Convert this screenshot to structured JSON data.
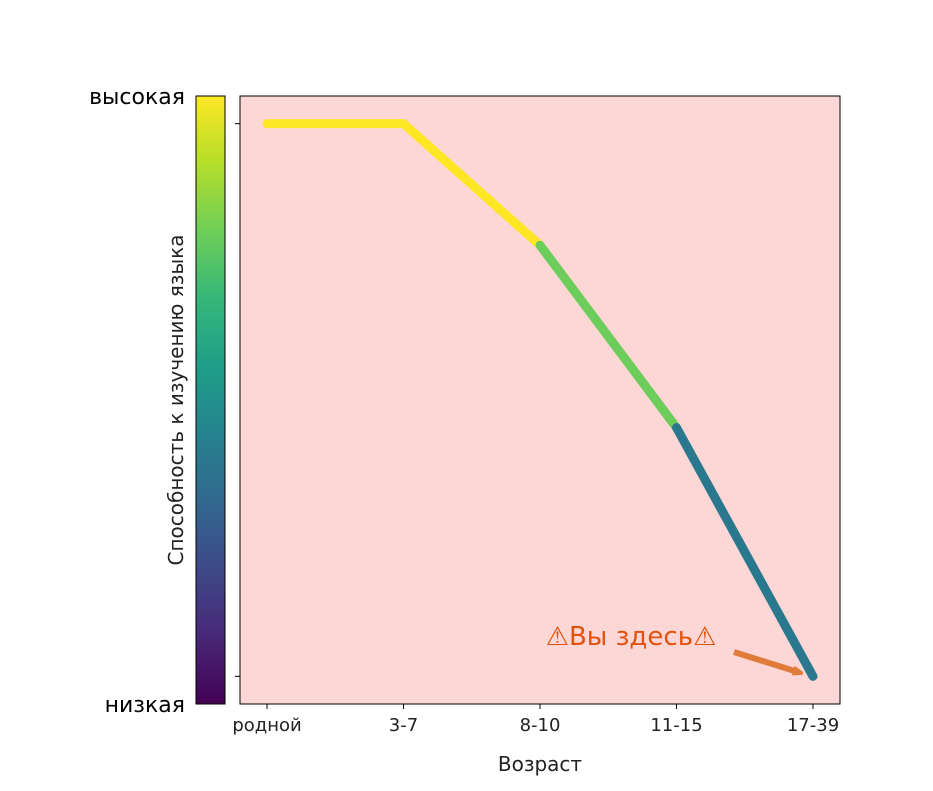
{
  "chart_data": {
    "type": "line",
    "categories": [
      "родной",
      "3-7",
      "8-10",
      "11-15",
      "17-39"
    ],
    "values": [
      1.0,
      1.0,
      0.78,
      0.45,
      0.0
    ],
    "segment_colors": [
      "#fde725",
      "#fde725",
      "#6ccd5a",
      "#2a788e"
    ],
    "ylim": [
      -0.05,
      1.05
    ],
    "xlabel": "Возраст",
    "ylabel": "",
    "background": "#fdd6d6",
    "colorbar": {
      "label": "Способность к изучению языка",
      "high_label": "высокая",
      "low_label": "низкая",
      "colormap": "viridis",
      "stops": [
        "#440154",
        "#482878",
        "#3e4989",
        "#31688e",
        "#26828e",
        "#1f9e89",
        "#35b779",
        "#6ece58",
        "#b5de2b",
        "#fde725"
      ]
    },
    "annotation": {
      "text": "⚠Вы здесь⚠",
      "target_index": 4,
      "color": "#e2520c",
      "arrow_color": "#e07b39"
    }
  }
}
